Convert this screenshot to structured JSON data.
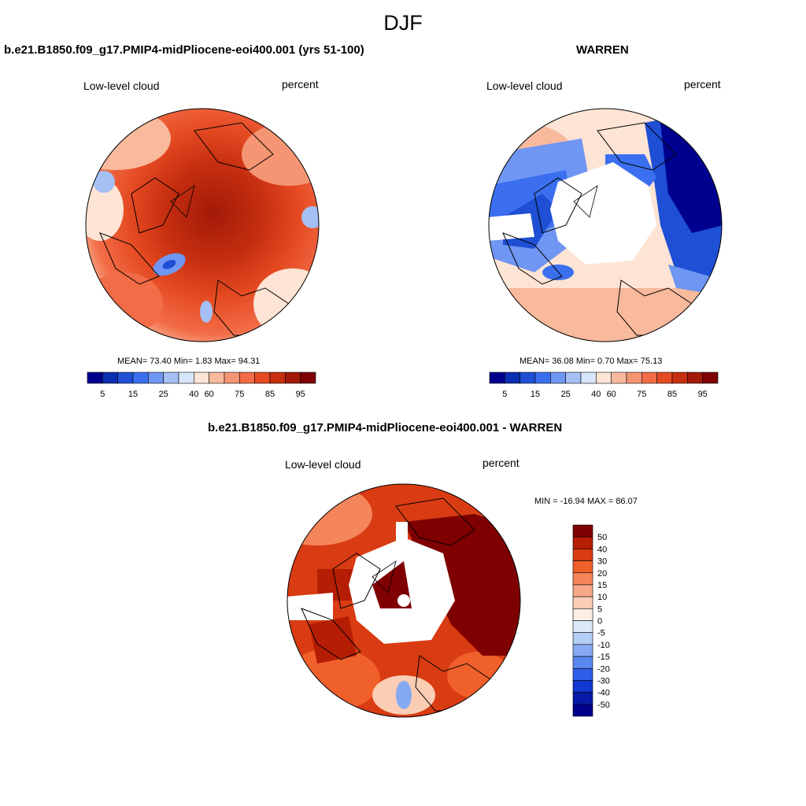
{
  "figure": {
    "title": "DJF"
  },
  "panels": [
    {
      "title": "b.e21.B1850.f09_g17.PMIP4-midPliocene-eoi400.001 (yrs 51-100)",
      "left_label": "Low-level cloud",
      "right_label": "percent",
      "stats": "MEAN=  73.40  Min=   1.83  Max=  94.31",
      "colorbar": {
        "colors": [
          "#00008f",
          "#0a2fb0",
          "#1f4fd4",
          "#3b6ff0",
          "#6f96f2",
          "#a4c0f5",
          "#d7e6fa",
          "#fde4d4",
          "#f8b99c",
          "#f59573",
          "#f26c47",
          "#e54a22",
          "#c62f10",
          "#a31a08",
          "#7f0000"
        ],
        "tick_labels": [
          "5",
          "15",
          "25",
          "40",
          "60",
          "75",
          "85",
          "95"
        ]
      }
    },
    {
      "title": "WARREN",
      "left_label": "Low-level cloud",
      "right_label": "percent",
      "stats": "MEAN=  36.08  Min=   0.70  Max=  75.13",
      "colorbar": {
        "colors": [
          "#00008f",
          "#0a2fb0",
          "#1f4fd4",
          "#3b6ff0",
          "#6f96f2",
          "#a4c0f5",
          "#d7e6fa",
          "#fde4d4",
          "#f8b99c",
          "#f59573",
          "#f26c47",
          "#e54a22",
          "#c62f10",
          "#a31a08",
          "#7f0000"
        ],
        "tick_labels": [
          "5",
          "15",
          "25",
          "40",
          "60",
          "75",
          "85",
          "95"
        ]
      }
    },
    {
      "title": "b.e21.B1850.f09_g17.PMIP4-midPliocene-eoi400.001 - WARREN",
      "left_label": "Low-level cloud",
      "right_label": "percent",
      "stats": "MIN = -16.94 MAX =  86.07",
      "colorbar": {
        "colors": [
          "#7f0000",
          "#b51d04",
          "#d93b12",
          "#f0602a",
          "#f5855a",
          "#f7a888",
          "#fbcdb5",
          "#fdeee4",
          "#dbe8f8",
          "#b3cdf5",
          "#86aaf2",
          "#5a87f0",
          "#2f5fe8",
          "#1238cf",
          "#0719a6",
          "#00008a"
        ],
        "tick_labels": [
          "50",
          "40",
          "30",
          "20",
          "15",
          "10",
          "5",
          "0",
          "-5",
          "-10",
          "-15",
          "-20",
          "-30",
          "-40",
          "-50"
        ]
      }
    }
  ]
}
